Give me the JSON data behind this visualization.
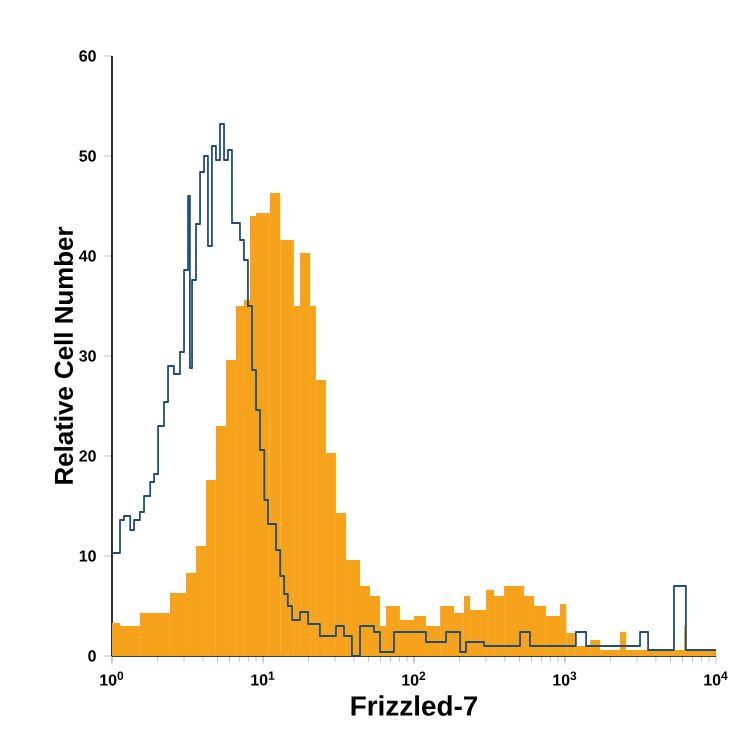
{
  "chart_data": {
    "type": "histogram",
    "xlabel": "Frizzled-7",
    "ylabel": "Relative Cell Number",
    "log": "x",
    "xlim": [
      1,
      10000
    ],
    "ylim": [
      0,
      60
    ],
    "xticks": [
      {
        "value": 1,
        "label": "10$^{0}$"
      },
      {
        "value": 10,
        "label": "10$^{1}$"
      },
      {
        "value": 100,
        "label": "10$^{2}$"
      },
      {
        "value": 1000,
        "label": "10$^{3}$"
      },
      {
        "value": 10000,
        "label": "10$^{4}$"
      }
    ],
    "yticks": [
      0,
      10,
      20,
      30,
      40,
      50,
      60
    ],
    "series": [
      {
        "color": "#f7a21b",
        "bins": [
          1,
          1.13,
          1.53,
          2.42,
          3.09,
          3.6,
          4.19,
          4.88,
          5.69,
          6.62,
          7.48,
          8.2,
          8.99,
          11.1,
          13.0,
          16.0,
          17.6,
          20.5,
          22.4,
          26.1,
          30.4,
          35.5,
          43.9,
          51.1,
          59.5,
          65.3,
          80.7,
          100,
          120,
          149,
          184,
          214,
          235,
          300,
          339,
          395,
          535,
          623,
          748,
          927,
          1020,
          1180,
          1470,
          1710,
          2310,
          2540,
          6140,
          6320,
          10000
        ],
        "values": [
          3.3,
          3,
          4.3,
          6.3,
          8.3,
          11,
          17.6,
          23,
          29.6,
          35,
          35.6,
          44,
          44.3,
          46.3,
          41.6,
          35,
          40.3,
          35,
          27.6,
          20.3,
          14.3,
          9.6,
          7,
          6,
          3,
          5,
          3.6,
          4,
          3,
          5,
          4.3,
          6,
          4.6,
          6.6,
          6,
          7,
          6,
          5,
          4,
          5.2,
          2.3,
          1,
          1.6,
          0.6,
          2.4,
          0.6,
          3,
          0.6
        ]
      },
      {
        "type": "step",
        "color": "#1f4e79",
        "x": [
          1,
          1.13,
          1.2,
          1.32,
          1.4,
          1.53,
          1.63,
          1.79,
          1.9,
          2.02,
          2.21,
          2.35,
          2.57,
          2.82,
          3.0,
          3.19,
          3.28,
          3.39,
          3.6,
          3.83,
          4.07,
          4.32,
          4.59,
          4.88,
          5.19,
          5.52,
          5.86,
          6.23,
          7.04,
          7.48,
          7.95,
          8.46,
          8.99,
          9.55,
          10.2,
          10.8,
          12.2,
          13.0,
          13.8,
          14.6,
          15.6,
          17.6,
          19.9,
          23.8,
          30.4,
          34.4,
          38.8,
          43.9,
          54.3,
          59.5,
          73.7,
          120,
          163,
          202,
          221,
          291,
          504,
          586,
          1180,
          1380,
          3140,
          3550,
          5270,
          6320,
          10000
        ],
        "values": [
          10.3,
          13.6,
          14,
          12.6,
          13.6,
          14.4,
          16,
          17.4,
          18.2,
          23,
          25.4,
          29,
          28.2,
          30.4,
          38.6,
          46,
          28.8,
          37.6,
          43.2,
          48.4,
          50,
          41,
          51,
          49.6,
          53.2,
          49.6,
          50.6,
          43.3,
          41.6,
          39.6,
          35,
          28.6,
          24.6,
          20.6,
          15.6,
          13.2,
          10.6,
          8,
          6.2,
          5,
          3.6,
          4.4,
          3.2,
          2,
          3,
          2,
          0,
          3,
          2.4,
          0.4,
          2.4,
          1.4,
          2.4,
          0.4,
          1.4,
          1,
          2.4,
          1,
          2.4,
          1,
          2.4,
          0.6,
          7,
          0.6,
          0.6
        ]
      }
    ]
  }
}
